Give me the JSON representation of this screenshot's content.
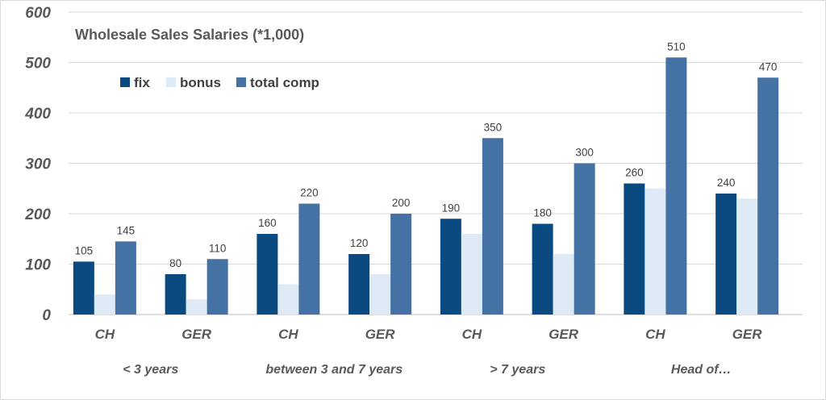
{
  "chart_data": {
    "type": "bar",
    "title": "Wholesale Sales Salaries (*1,000)",
    "categories": [
      "CH",
      "GER",
      "CH",
      "GER",
      "CH",
      "GER",
      "CH",
      "GER"
    ],
    "groups": [
      {
        "label": "< 3 years",
        "span": [
          0,
          1
        ]
      },
      {
        "label": "between 3 and 7 years",
        "span": [
          2,
          3
        ]
      },
      {
        "label": "> 7 years",
        "span": [
          4,
          5
        ]
      },
      {
        "label": "Head of…",
        "span": [
          6,
          7
        ]
      }
    ],
    "series": [
      {
        "name": "fix",
        "color": "#0b4a80",
        "values": [
          105,
          80,
          160,
          120,
          190,
          180,
          260,
          240
        ],
        "labeled": true
      },
      {
        "name": "bonus",
        "color": "#deebf7",
        "values": [
          40,
          30,
          60,
          80,
          160,
          120,
          250,
          230
        ],
        "labeled": false
      },
      {
        "name": "total comp",
        "color": "#4472a4",
        "values": [
          145,
          110,
          220,
          200,
          350,
          300,
          510,
          470
        ],
        "labeled": true
      }
    ],
    "yticks": [
      "0",
      "100",
      "200",
      "300",
      "400",
      "500",
      "600"
    ],
    "ylim": [
      0,
      600
    ],
    "grid": true,
    "legend_position": "top-left"
  }
}
